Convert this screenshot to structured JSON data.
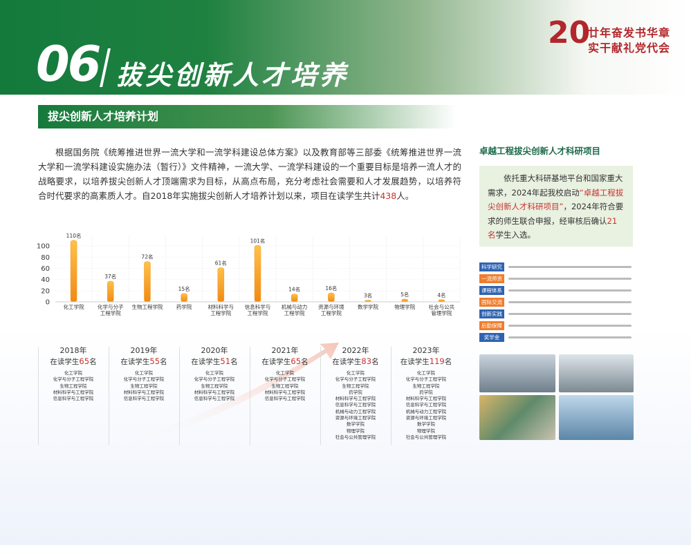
{
  "header": {
    "number": "06",
    "title": "拔尖创新人才培养",
    "logo_number": "20",
    "logo_line1": "廿年奋发书华章",
    "logo_line2": "实干献礼党代会"
  },
  "section": {
    "title": "拔尖创新人才培养计划"
  },
  "intro": {
    "text": "根据国务院《统筹推进世界一流大学和一流学科建设总体方案》以及教育部等三部委《统筹推进世界一流大学和一流学科建设实施办法（暂行）》文件精神，一流大学、一流学科建设的一个重要目标是培养一流人才的战略要求，以培养拔尖创新人才顶端需求为目标，从高点布局，充分考虑社会需要和人才发展趋势，以培养符合时代要求的高素质人才。自2018年实施拔尖创新人才培养计划以来，项目在读学生共计",
    "highlight": "438",
    "suffix": "人。"
  },
  "chart_data": {
    "type": "bar",
    "categories": [
      "化工学院",
      "化学与分子\n工程学院",
      "生物工程学院",
      "药学院",
      "材料科学与\n工程学院",
      "信息科学与\n工程学院",
      "机械与动力\n工程学院",
      "资源与环境\n工程学院",
      "数学学院",
      "物理学院",
      "社会与公共\n管理学院"
    ],
    "values": [
      110,
      37,
      72,
      15,
      61,
      101,
      14,
      16,
      3,
      5,
      4
    ],
    "value_labels": [
      "110名",
      "37名",
      "72名",
      "15名",
      "61名",
      "101名",
      "14名",
      "16名",
      "3名",
      "5名",
      "4名"
    ],
    "color": "#f39a1e",
    "ylim": [
      0,
      110
    ],
    "yticks": [
      0,
      20,
      40,
      60,
      80,
      100
    ],
    "grid": true
  },
  "years": [
    {
      "year": "2018年",
      "label": "在读学生",
      "count": "65",
      "unit": "名",
      "colleges": [
        "化工学院",
        "化学与分子工程学院",
        "生物工程学院",
        "材料科学与工程学院",
        "信息科学与工程学院"
      ]
    },
    {
      "year": "2019年",
      "label": "在读学生",
      "count": "55",
      "unit": "名",
      "colleges": [
        "化工学院",
        "化学与分子工程学院",
        "生物工程学院",
        "材料科学与工程学院",
        "信息科学与工程学院"
      ]
    },
    {
      "year": "2020年",
      "label": "在读学生",
      "count": "51",
      "unit": "名",
      "colleges": [
        "化工学院",
        "化学与分子工程学院",
        "生物工程学院",
        "材料科学与工程学院",
        "信息科学与工程学院"
      ]
    },
    {
      "year": "2021年",
      "label": "在读学生",
      "count": "65",
      "unit": "名",
      "colleges": [
        "化工学院",
        "化学与分子工程学院",
        "生物工程学院",
        "材料科学与工程学院",
        "信息科学与工程学院"
      ]
    },
    {
      "year": "2022年",
      "label": "在读学生",
      "count": "83",
      "unit": "名",
      "colleges": [
        "化工学院",
        "化学与分子工程学院",
        "生物工程学院",
        "药学院",
        "材料科学与工程学院",
        "信息科学与工程学院",
        "机械与动力工程学院",
        "资源与环境工程学院",
        "数学学院",
        "物理学院",
        "社会与公共管理学院"
      ]
    },
    {
      "year": "2023年",
      "label": "在读学生",
      "count": "119",
      "unit": "名",
      "colleges": [
        "化工学院",
        "化学与分子工程学院",
        "生物工程学院",
        "药学院",
        "材料科学与工程学院",
        "信息科学与工程学院",
        "机械与动力工程学院",
        "资源与环境工程学院",
        "数学学院",
        "物理学院",
        "社会与公共管理学院"
      ]
    }
  ],
  "project": {
    "title": "卓越工程拔尖创新人才科研项目",
    "text1": "依托重大科研基地平台和国家重大需求，2024年起我校启动",
    "highlight1": "“卓越工程拔尖创新人才科研项目”",
    "text2": "，2024年符合要求的师生联合申报，经审核后确认",
    "highlight2": "21名",
    "text3": "学生入选。",
    "tags": [
      "科学研究",
      "一流师资",
      "课程体系",
      "国际交流",
      "创新实践",
      "后勤保障",
      "奖学金"
    ]
  }
}
